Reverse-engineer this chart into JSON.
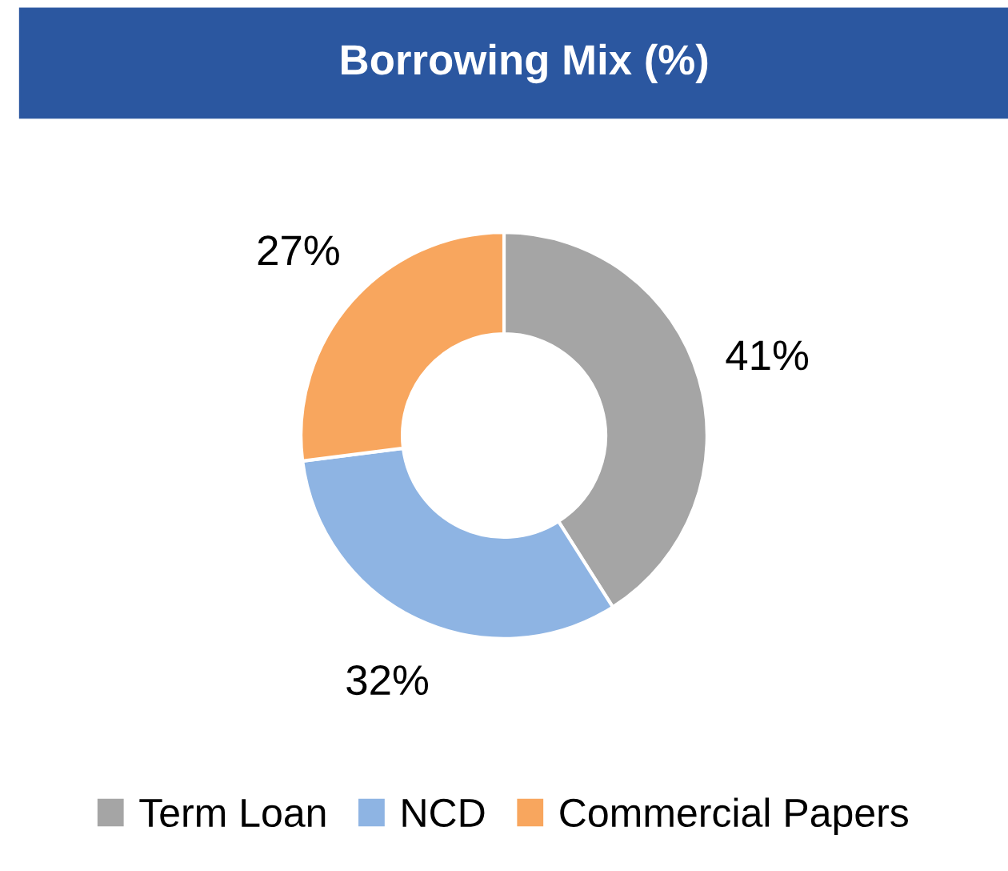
{
  "chart_data": {
    "type": "donut",
    "title": "Borrowing Mix (%)",
    "categories": [
      "Term Loan",
      "NCD",
      "Commercial Papers"
    ],
    "values": [
      41,
      32,
      27
    ],
    "colors": [
      "#a5a5a5",
      "#8eb4e3",
      "#f8a65e"
    ],
    "value_labels": [
      "41%",
      "32%",
      "27%"
    ],
    "legend": "bottom"
  }
}
